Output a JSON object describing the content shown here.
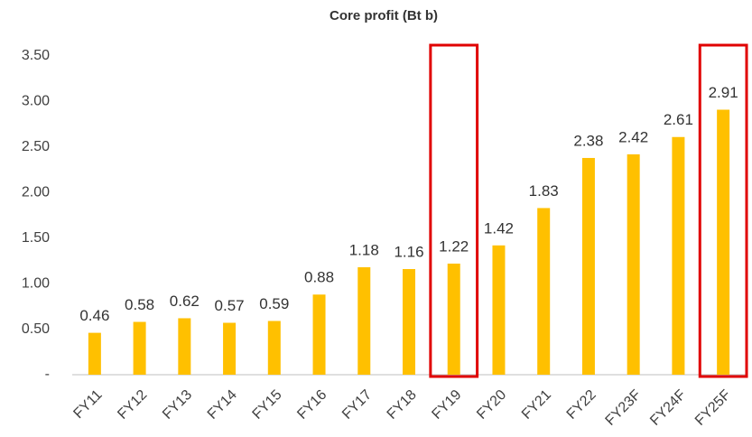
{
  "chart_data": {
    "type": "bar",
    "title": "Core profit (Bt b)",
    "categories": [
      "FY11",
      "FY12",
      "FY13",
      "FY14",
      "FY15",
      "FY16",
      "FY17",
      "FY18",
      "FY19",
      "FY20",
      "FY21",
      "FY22",
      "FY23F",
      "FY24F",
      "FY25F"
    ],
    "values": [
      0.46,
      0.58,
      0.62,
      0.57,
      0.59,
      0.88,
      1.18,
      1.16,
      1.22,
      1.42,
      1.83,
      2.38,
      2.42,
      2.61,
      2.91
    ],
    "color": "#ffc000",
    "ylim": [
      0,
      3.5
    ],
    "yticks": [
      {
        "value": 0,
        "label": "-"
      },
      {
        "value": 0.5,
        "label": "0.50"
      },
      {
        "value": 1,
        "label": "1.00"
      },
      {
        "value": 1.5,
        "label": "1.50"
      },
      {
        "value": 2,
        "label": "2.00"
      },
      {
        "value": 2.5,
        "label": "2.50"
      },
      {
        "value": 3,
        "label": "3.00"
      },
      {
        "value": 3.5,
        "label": "3.50"
      }
    ],
    "grid": false,
    "highlight": [
      8,
      14
    ],
    "highlight_color": "#e00000"
  }
}
